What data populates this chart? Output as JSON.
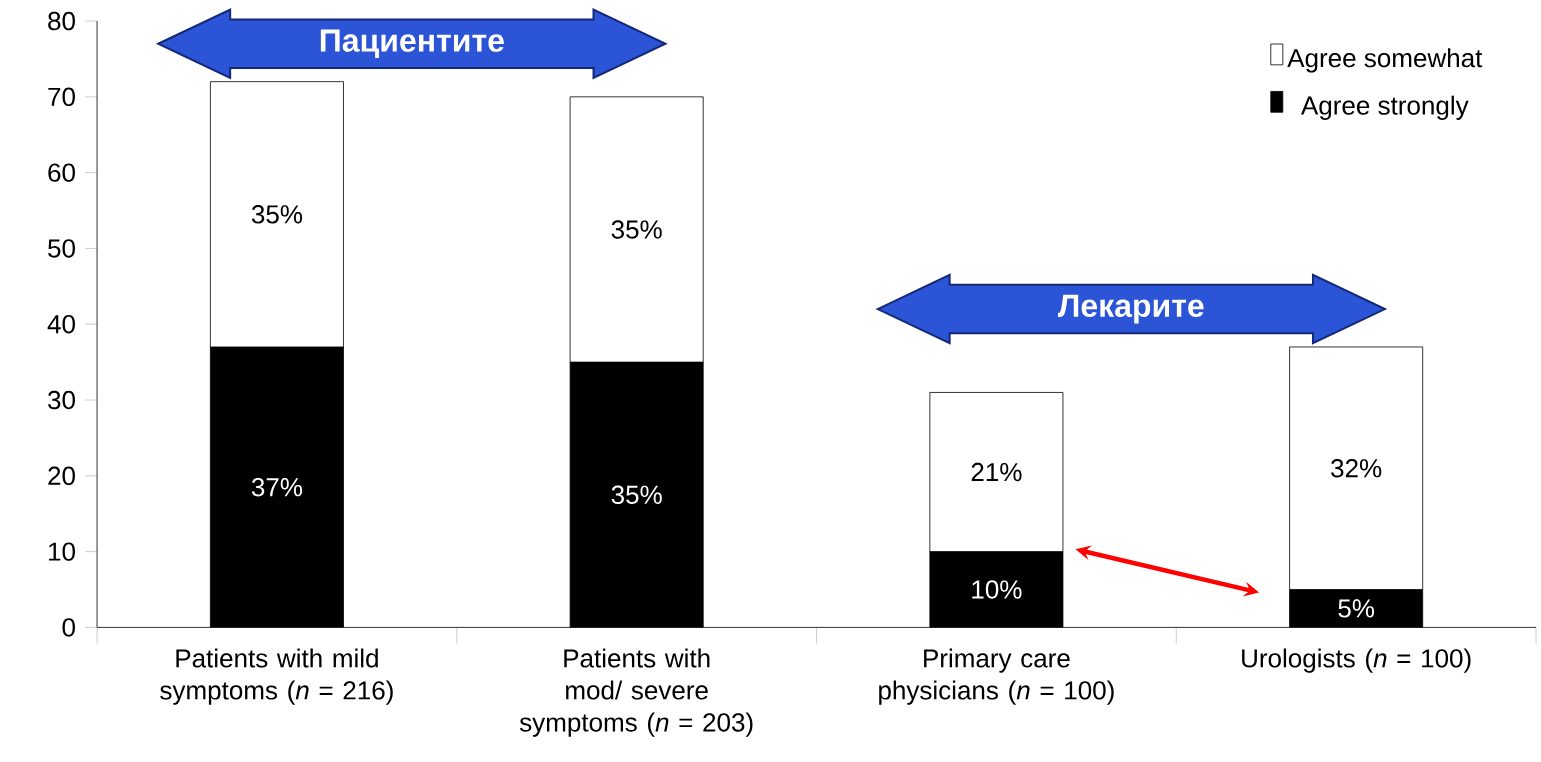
{
  "chart_data": {
    "type": "bar",
    "stacked": true,
    "categories": [
      "Patients with mild symptoms (*n* = 216)",
      "Patients with mod/ severe symptoms (*n* = 203)",
      "Primary care physicians (*n* = 100)",
      "Urologists (*n* = 100)"
    ],
    "series": [
      {
        "name": "Agree strongly",
        "color": "#000000",
        "values": [
          37,
          35,
          10,
          5
        ],
        "value_labels": [
          "37%",
          "35%",
          "10%",
          "5%"
        ]
      },
      {
        "name": "Agree somewhat",
        "color": "#ffffff",
        "values": [
          35,
          35,
          21,
          32
        ],
        "value_labels": [
          "35%",
          "35%",
          "21%",
          "32%"
        ]
      }
    ],
    "ylim": [
      0,
      80
    ],
    "yticks": [
      0,
      10,
      20,
      30,
      40,
      50,
      60,
      70,
      80
    ],
    "legend": "top right",
    "grid": false,
    "annotations": [
      "Пациентите",
      "Лекарите"
    ]
  }
}
